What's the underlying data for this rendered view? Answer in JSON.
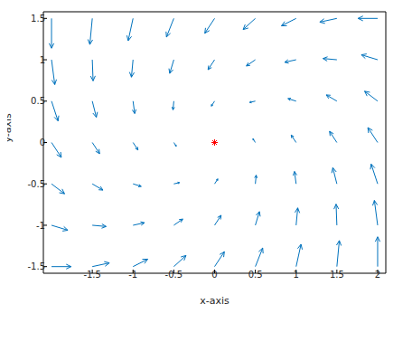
{
  "chart_data": {
    "type": "quiver",
    "x_label": "x-axis",
    "y_label": "y-axis",
    "xlim": [
      -2.1,
      2.1
    ],
    "xticks": [
      -1.5,
      -1,
      -0.5,
      0,
      0.5,
      1,
      1.5,
      2
    ],
    "ylim": [
      -1.58,
      1.58
    ],
    "yticks": [
      -1.5,
      -1,
      -0.5,
      0,
      0.5,
      1,
      1.5
    ],
    "color": "#0072bd",
    "grid": false,
    "x": [
      -2,
      -1.5,
      -1,
      -0.5,
      0,
      0.5,
      1,
      1.5,
      2
    ],
    "y": [
      1.5,
      1,
      0.5,
      0,
      -0.5,
      -1,
      -1.5
    ],
    "u": [
      [
        0,
        -0.03,
        -0.06,
        -0.09,
        -0.12,
        -0.15,
        -0.18,
        -0.21,
        -0.24
      ],
      [
        0.04,
        0.01,
        -0.02,
        -0.05,
        -0.08,
        -0.11,
        -0.14,
        -0.17,
        -0.2
      ],
      [
        0.08,
        0.05,
        0.02,
        -0.01,
        -0.04,
        -0.07,
        -0.1,
        -0.13,
        -0.16
      ],
      [
        0.12,
        0.09,
        0.06,
        0.03,
        0,
        -0.03,
        -0.06,
        -0.09,
        -0.12
      ],
      [
        0.16,
        0.13,
        0.1,
        0.07,
        0.04,
        0.01,
        -0.02,
        -0.05,
        -0.08
      ],
      [
        0.2,
        0.17,
        0.14,
        0.11,
        0.08,
        0.05,
        0.02,
        -0.01,
        -0.04
      ],
      [
        0.24,
        0.21,
        0.18,
        0.15,
        0.12,
        0.09,
        0.06,
        0.03,
        0
      ]
    ],
    "v": [
      [
        -0.36,
        -0.315,
        -0.27,
        -0.225,
        -0.18,
        -0.135,
        -0.09,
        -0.045,
        0
      ],
      [
        -0.3,
        -0.255,
        -0.21,
        -0.165,
        -0.12,
        -0.075,
        -0.03,
        0.015,
        0.06
      ],
      [
        -0.24,
        -0.195,
        -0.15,
        -0.105,
        -0.06,
        -0.015,
        0.03,
        0.075,
        0.12
      ],
      [
        -0.18,
        -0.135,
        -0.09,
        -0.045,
        0,
        0.045,
        0.09,
        0.135,
        0.18
      ],
      [
        -0.12,
        -0.075,
        -0.03,
        0.015,
        0.06,
        0.105,
        0.15,
        0.195,
        0.24
      ],
      [
        -0.06,
        -0.015,
        0.03,
        0.075,
        0.12,
        0.165,
        0.21,
        0.255,
        0.3
      ],
      [
        0,
        0.045,
        0.09,
        0.135,
        0.18,
        0.225,
        0.27,
        0.315,
        0.36
      ]
    ],
    "point": {
      "x": 0,
      "y": 0,
      "color": "#ff0000",
      "marker": "star"
    }
  }
}
